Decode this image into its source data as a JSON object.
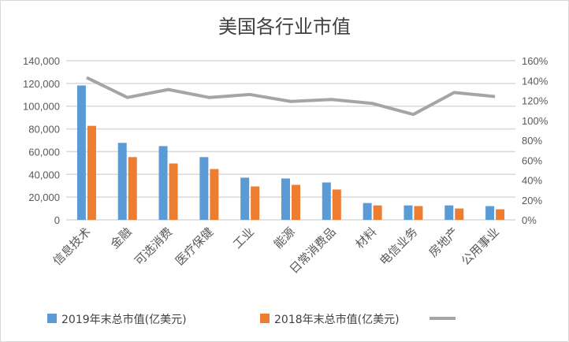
{
  "chart_data": {
    "type": "bar+line",
    "title": "美国各行业市值",
    "categories": [
      "信息技术",
      "金融",
      "可选消费",
      "医疗保健",
      "工业",
      "能源",
      "日常消费品",
      "材料",
      "电信业务",
      "房地产",
      "公用事业"
    ],
    "series": [
      {
        "name": "2019年末总市值(亿美元)",
        "type": "bar",
        "axis": "left",
        "color": "#5b9bd5",
        "values": [
          118200,
          67700,
          64900,
          55200,
          37100,
          36400,
          32900,
          14800,
          12700,
          12700,
          12100
        ]
      },
      {
        "name": "2018年末总市值(亿美元)",
        "type": "bar",
        "axis": "left",
        "color": "#ed7d31",
        "values": [
          82700,
          55200,
          49600,
          44700,
          29400,
          30800,
          26700,
          12700,
          12100,
          10000,
          9300
        ]
      },
      {
        "type": "line",
        "axis": "right",
        "color": "#a5a5a5",
        "values": [
          1.43,
          1.23,
          1.31,
          1.23,
          1.26,
          1.19,
          1.21,
          1.17,
          1.06,
          1.28,
          1.24
        ]
      }
    ],
    "left_axis": {
      "range": [
        0,
        140000
      ],
      "ticks": [
        "0",
        "20,000",
        "40,000",
        "60,000",
        "80,000",
        "100,000",
        "120,000",
        "140,000"
      ]
    },
    "right_axis": {
      "range": [
        0,
        1.6
      ],
      "ticks": [
        "0%",
        "20%",
        "40%",
        "60%",
        "80%",
        "100%",
        "120%",
        "140%",
        "160%"
      ]
    },
    "grid": true,
    "legend_position": "bottom"
  }
}
